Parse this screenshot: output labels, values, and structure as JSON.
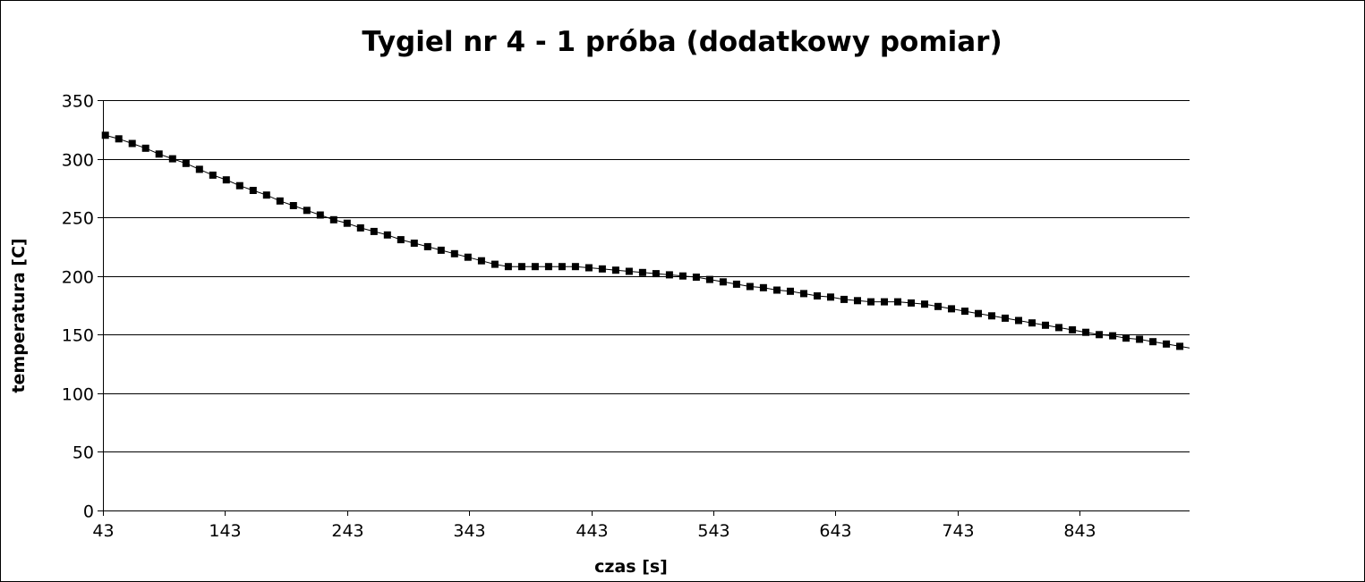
{
  "chart_data": {
    "type": "line",
    "title": "Tygiel nr 4 - 1 próba (dodatkowy pomiar)",
    "xlabel": "czas [s]",
    "ylabel": "temperatura [C]",
    "xlim": [
      43,
      933
    ],
    "ylim": [
      0,
      350
    ],
    "x_ticks": [
      "43",
      "143",
      "243",
      "343",
      "443",
      "543",
      "643",
      "743",
      "843"
    ],
    "y_ticks": [
      "0",
      "50",
      "100",
      "150",
      "200",
      "250",
      "300",
      "350"
    ],
    "grid": "horizontal",
    "legend": "none",
    "marker": "square",
    "series": [
      {
        "color": "#000000",
        "x": [
          45,
          56,
          67,
          78,
          89,
          100,
          111,
          122,
          133,
          144,
          155,
          166,
          177,
          188,
          199,
          210,
          221,
          232,
          243,
          254,
          265,
          276,
          287,
          298,
          309,
          320,
          331,
          342,
          353,
          364,
          375,
          386,
          397,
          408,
          419,
          430,
          441,
          452,
          463,
          474,
          485,
          496,
          507,
          518,
          529,
          540,
          551,
          562,
          573,
          584,
          595,
          606,
          617,
          628,
          639,
          650,
          661,
          672,
          683,
          694,
          705,
          716,
          727,
          738,
          749,
          760,
          771,
          782,
          793,
          804,
          815,
          826,
          837,
          848,
          859,
          870,
          881,
          892,
          903,
          914,
          925
        ],
        "y": [
          320,
          317,
          313,
          309,
          304,
          300,
          296,
          291,
          286,
          282,
          277,
          273,
          269,
          264,
          260,
          256,
          252,
          248,
          245,
          241,
          238,
          235,
          231,
          228,
          225,
          222,
          219,
          216,
          213,
          210,
          208,
          208,
          208,
          208,
          208,
          208,
          207,
          206,
          205,
          204,
          203,
          202,
          201,
          200,
          199,
          197,
          195,
          193,
          191,
          190,
          188,
          187,
          185,
          183,
          182,
          180,
          179,
          178,
          178,
          178,
          177,
          176,
          174,
          172,
          170,
          168,
          166,
          164,
          162,
          160,
          158,
          156,
          154,
          152,
          150,
          149,
          147,
          146,
          144,
          142,
          140
        ]
      }
    ]
  }
}
